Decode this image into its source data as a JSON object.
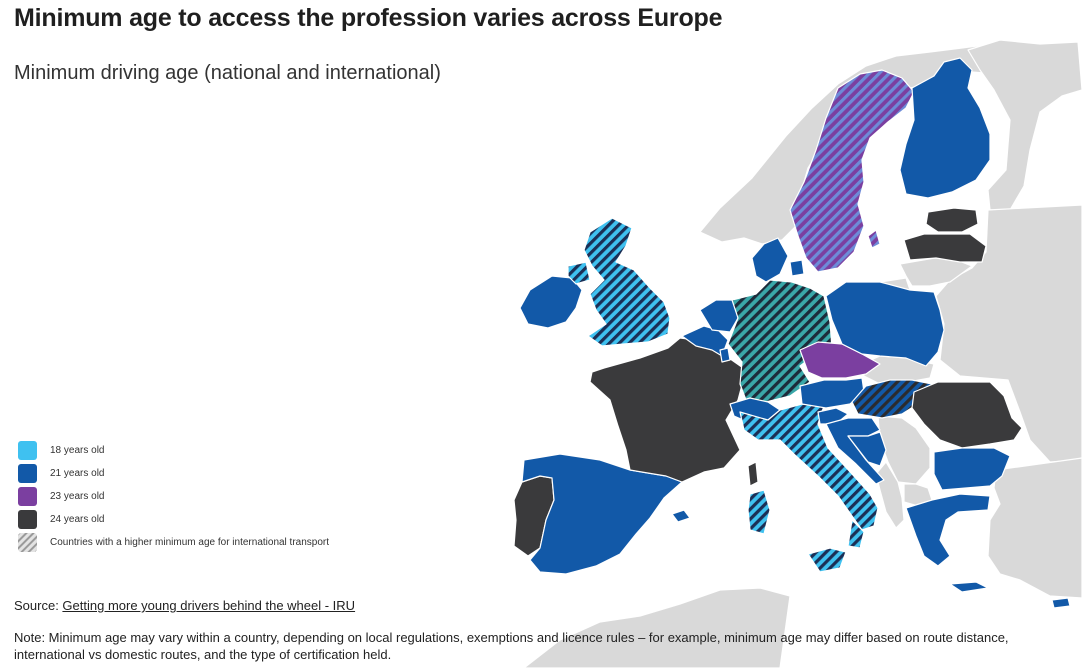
{
  "title": "Minimum age to access the profession varies across Europe",
  "subtitle": "Minimum driving age (national and international)",
  "colors": {
    "age_18": "#3fc1f0",
    "age_21": "#1259a8",
    "age_23": "#7b3fa0",
    "age_24": "#3a3a3c",
    "no_data": "#d9d9d9",
    "sea": "#ffffff",
    "border": "#ffffff"
  },
  "legend": [
    {
      "label": "18 years old",
      "color": "#3fc1f0"
    },
    {
      "label": "21 years old",
      "color": "#1259a8"
    },
    {
      "label": "23 years old",
      "color": "#7b3fa0"
    },
    {
      "label": "24 years old",
      "color": "#3a3a3c"
    },
    {
      "label": "Countries with a higher minimum age for international transport",
      "pattern": "hatch"
    }
  ],
  "countries": [
    {
      "name": "Ireland",
      "category": "21"
    },
    {
      "name": "United Kingdom",
      "category": "18",
      "hatched": true
    },
    {
      "name": "Portugal",
      "category": "24"
    },
    {
      "name": "Spain",
      "category": "21"
    },
    {
      "name": "France",
      "category": "24"
    },
    {
      "name": "Belgium",
      "category": "21"
    },
    {
      "name": "Netherlands",
      "category": "21"
    },
    {
      "name": "Luxembourg",
      "category": "21"
    },
    {
      "name": "Germany",
      "category": "18",
      "hatched": true
    },
    {
      "name": "Denmark",
      "category": "21"
    },
    {
      "name": "Switzerland",
      "category": "21"
    },
    {
      "name": "Italy",
      "category": "18",
      "hatched": true
    },
    {
      "name": "Austria",
      "category": "21"
    },
    {
      "name": "Czechia",
      "category": "23"
    },
    {
      "name": "Poland",
      "category": "21"
    },
    {
      "name": "Sweden",
      "category": "23",
      "hatched": true
    },
    {
      "name": "Finland",
      "category": "21"
    },
    {
      "name": "Estonia",
      "category": "24"
    },
    {
      "name": "Latvia",
      "category": "24"
    },
    {
      "name": "Hungary",
      "category": "21",
      "hatched": true
    },
    {
      "name": "Romania",
      "category": "24"
    },
    {
      "name": "Bulgaria",
      "category": "21"
    },
    {
      "name": "Greece",
      "category": "21"
    },
    {
      "name": "Croatia",
      "category": "21"
    },
    {
      "name": "Bosnia and Herzegovina",
      "category": "21"
    },
    {
      "name": "Slovenia",
      "category": "21"
    },
    {
      "name": "Cyprus",
      "category": "21"
    }
  ],
  "source_prefix": "Source: ",
  "source_link": "Getting more young drivers behind the wheel - IRU",
  "note": "Note: Minimum age may vary within a country, depending on local regulations, exemptions and licence rules – for example, minimum age may differ based on route distance, international vs domestic routes, and the type of certification held."
}
